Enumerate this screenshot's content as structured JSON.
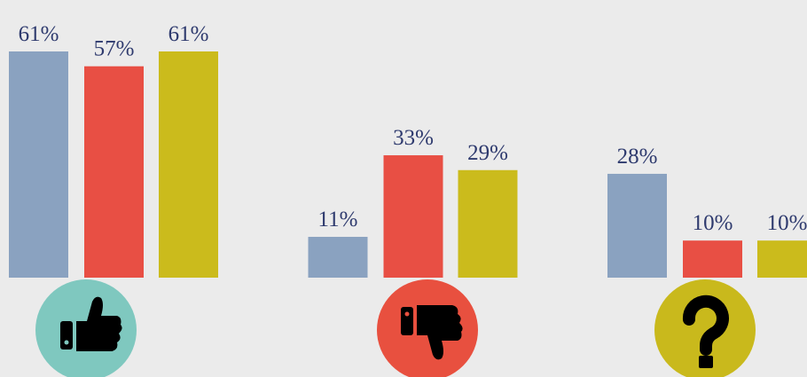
{
  "chart_data": {
    "type": "bar",
    "categories": [
      null,
      null,
      null
    ],
    "series": [
      {
        "color": "#8aa2c0",
        "values": [
          61,
          11,
          28
        ],
        "value_labels": [
          "61%",
          "11%",
          "28%"
        ]
      },
      {
        "color": "#e84f44",
        "values": [
          57,
          33,
          10
        ],
        "value_labels": [
          "57%",
          "33%",
          "10%"
        ]
      },
      {
        "color": "#cbbb1c",
        "values": [
          61,
          29,
          10
        ],
        "value_labels": [
          "61%",
          "29%",
          "10%"
        ]
      }
    ]
  }
}
